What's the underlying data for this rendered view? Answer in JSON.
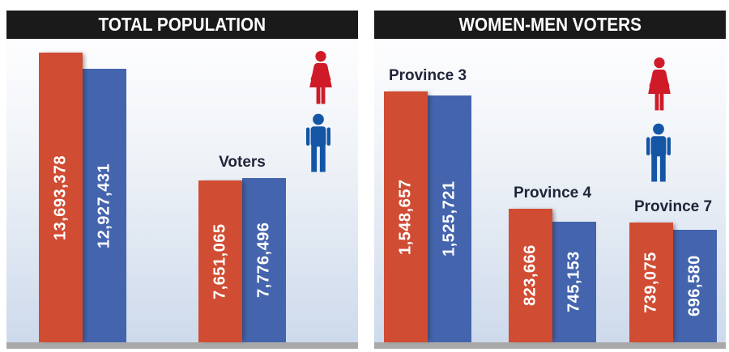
{
  "colors": {
    "women_bar": "#d04c33",
    "men_bar": "#4464ad",
    "female_icon": "#cf1a28",
    "male_icon": "#1456a5",
    "title_bg": "#1a1a1a",
    "title_text": "#ffffff",
    "label_text": "#21253a",
    "floor": "#a9a9a9"
  },
  "chart_data": [
    {
      "type": "bar",
      "title": "TOTAL POPULATION",
      "legend": [
        {
          "series": "women",
          "icon": "female-icon",
          "color": "#d04c33"
        },
        {
          "series": "men",
          "icon": "male-icon",
          "color": "#4464ad"
        }
      ],
      "groups": [
        {
          "label": "",
          "women": {
            "value": 13693378,
            "display": "13,693,378"
          },
          "men": {
            "value": 12927431,
            "display": "12,927,431"
          }
        },
        {
          "label": "Voters",
          "women": {
            "value": 7651065,
            "display": "7,651,065"
          },
          "men": {
            "value": 7776496,
            "display": "7,776,496"
          }
        }
      ]
    },
    {
      "type": "bar",
      "title": "WOMEN-MEN VOTERS",
      "legend": [
        {
          "series": "women",
          "icon": "female-icon",
          "color": "#d04c33"
        },
        {
          "series": "men",
          "icon": "male-icon",
          "color": "#4464ad"
        }
      ],
      "groups": [
        {
          "label": "Province 3",
          "women": {
            "value": 1548657,
            "display": "1,548,657"
          },
          "men": {
            "value": 1525721,
            "display": "1,525,721"
          }
        },
        {
          "label": "Province 4",
          "women": {
            "value": 823666,
            "display": "823,666"
          },
          "men": {
            "value": 745153,
            "display": "745,153"
          }
        },
        {
          "label": "Province 7",
          "women": {
            "value": 739075,
            "display": "739,075"
          },
          "men": {
            "value": 696580,
            "display": "696,580"
          }
        }
      ]
    }
  ]
}
